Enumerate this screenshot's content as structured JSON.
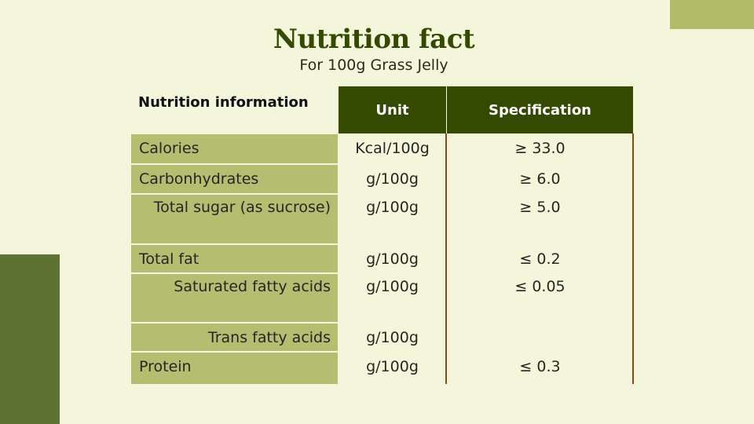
{
  "title": "Nutrition fact",
  "subtitle": "For 100g Grass Jelly",
  "table": {
    "headers": {
      "info": "Nutrition information",
      "unit": "Unit",
      "spec": "Specification"
    },
    "rows": [
      {
        "name": "Calories",
        "unit": "Kcal/100g",
        "spec": "≥ 33.0"
      },
      {
        "name": "Carbonhydrates",
        "unit": "g/100g",
        "spec": "≥ 6.0"
      },
      {
        "name": "Total sugar (as sucrose)",
        "unit": "g/100g",
        "spec": "≥ 5.0"
      },
      {
        "name": "Total fat",
        "unit": "g/100g",
        "spec": "≤ 0.2"
      },
      {
        "name": "Saturated fatty acids",
        "unit": "g/100g",
        "spec": "≤ 0.05"
      },
      {
        "name": "Trans fatty acids",
        "unit": "g/100g",
        "spec": ""
      },
      {
        "name": "Protein",
        "unit": "g/100g",
        "spec": "≤ 0.3"
      }
    ]
  },
  "colors": {
    "background": "#f4f6dc",
    "accent_dark": "#334a00",
    "accent_light": "#b4bd70",
    "deco_dark": "#5e7233",
    "divider": "#8a4a1a"
  }
}
